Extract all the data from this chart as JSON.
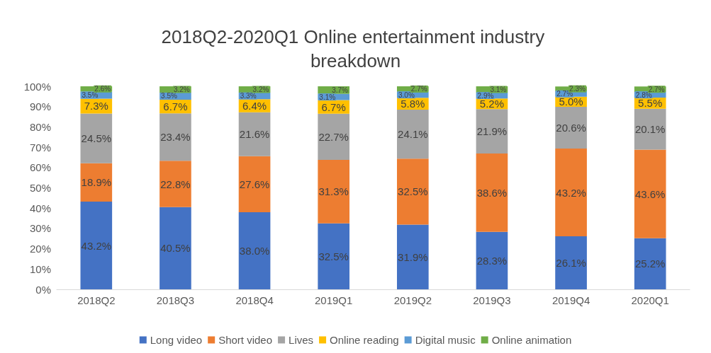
{
  "chart_data": {
    "type": "bar",
    "stacked": true,
    "title": "2018Q2-2020Q1 Online entertainment industry breakdown",
    "categories": [
      "2018Q2",
      "2018Q3",
      "2018Q4",
      "2019Q1",
      "2019Q2",
      "2019Q3",
      "2019Q4",
      "2020Q1"
    ],
    "series": [
      {
        "name": "Long video",
        "color": "#4472c4",
        "values": [
          43.2,
          40.5,
          38.0,
          32.5,
          31.9,
          28.3,
          26.1,
          25.2
        ],
        "value_labels": [
          "43.2%",
          "40.5%",
          "38.0%",
          "32.5%",
          "31.9%",
          "28.3%",
          "26.1%",
          "25.2%"
        ]
      },
      {
        "name": "Short video",
        "color": "#ed7d31",
        "values": [
          18.9,
          22.8,
          27.6,
          31.3,
          32.5,
          38.6,
          43.2,
          43.6
        ],
        "value_labels": [
          "18.9%",
          "22.8%",
          "27.6%",
          "31.3%",
          "32.5%",
          "38.6%",
          "43.2%",
          "43.6%"
        ]
      },
      {
        "name": "Lives",
        "color": "#a5a5a5",
        "values": [
          24.5,
          23.4,
          21.6,
          22.7,
          24.1,
          21.9,
          20.6,
          20.1
        ],
        "value_labels": [
          "24.5%",
          "23.4%",
          "21.6%",
          "22.7%",
          "24.1%",
          "21.9%",
          "20.6%",
          "20.1%"
        ]
      },
      {
        "name": "Online reading",
        "color": "#ffc000",
        "values": [
          7.3,
          6.7,
          6.4,
          6.7,
          5.8,
          5.2,
          5.0,
          5.5
        ],
        "value_labels": [
          "7.3%",
          "6.7%",
          "6.4%",
          "6.7%",
          "5.8%",
          "5.2%",
          "5.0%",
          "5.5%"
        ]
      },
      {
        "name": "Digital music",
        "color": "#5b9bd5",
        "values": [
          3.5,
          3.5,
          3.3,
          3.1,
          3.0,
          2.9,
          2.7,
          2.8
        ],
        "value_labels": [
          "3.5%",
          "3.5%",
          "3.3%",
          "3.1%",
          "3.0%",
          "2.9%",
          "2.7%",
          "2.8%"
        ]
      },
      {
        "name": "Online animation",
        "color": "#70ad47",
        "values": [
          2.6,
          3.2,
          3.2,
          3.7,
          2.7,
          3.1,
          2.3,
          2.7
        ],
        "value_labels": [
          "2.6%",
          "3.2%",
          "3.2%",
          "3.7%",
          "2.7%",
          "3.1%",
          "2.3%",
          "2.7%"
        ]
      }
    ],
    "ylim": [
      0,
      100
    ],
    "yticks": [
      {
        "value": 0,
        "label": "0%"
      },
      {
        "value": 10,
        "label": "10%"
      },
      {
        "value": 20,
        "label": "20%"
      },
      {
        "value": 30,
        "label": "30%"
      },
      {
        "value": 40,
        "label": "40%"
      },
      {
        "value": 50,
        "label": "50%"
      },
      {
        "value": 60,
        "label": "60%"
      },
      {
        "value": 70,
        "label": "70%"
      },
      {
        "value": 80,
        "label": "80%"
      },
      {
        "value": 90,
        "label": "90%"
      },
      {
        "value": 100,
        "label": "100%"
      }
    ],
    "grid": false,
    "legend": "bottom"
  }
}
